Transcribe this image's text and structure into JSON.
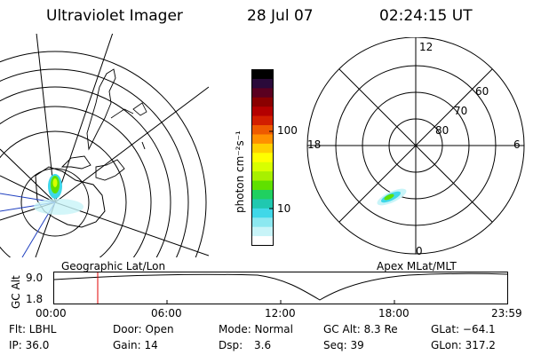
{
  "header": {
    "title": "Ultraviolet Imager",
    "date": "28 Jul 07",
    "time": "02:24:15 UT"
  },
  "colorbar": {
    "unit_label": "photon cm⁻²s⁻¹",
    "ticks": [
      "100",
      "10"
    ],
    "colors": [
      "#000000",
      "#2a0a3a",
      "#5a0020",
      "#8a0000",
      "#b40000",
      "#d21e00",
      "#ee5a00",
      "#ff9000",
      "#ffd000",
      "#ffff00",
      "#d8ff00",
      "#a8f000",
      "#60e000",
      "#20d060",
      "#20c8b0",
      "#40d8e8",
      "#8ce8f0",
      "#c8f4f8",
      "#ffffff"
    ]
  },
  "left_map": {
    "caption": "Geographic Lat/Lon"
  },
  "right_map": {
    "caption": "Apex  MLat/MLT",
    "mlt_labels": {
      "top": "12",
      "bottom": "0",
      "left": "18",
      "right": "6"
    },
    "lat_labels": [
      "60",
      "70",
      "80"
    ]
  },
  "altitude_plot": {
    "ylabel": "GC Alt",
    "yticks": [
      "9.0",
      "1.8"
    ],
    "xticks": [
      "00:00",
      "06:00",
      "12:00",
      "18:00",
      "23:59"
    ],
    "marker_time": "02:24"
  },
  "info": {
    "filter": "Flt: LBHL",
    "door": "Door: Open",
    "mode": "Mode: Normal",
    "gc_alt": "GC Alt: 8.3 Re",
    "glat": "GLat: −64.1",
    "ip": "IP: 36.0",
    "gain": "Gain: 14",
    "dsp_label": "Dsp:",
    "dsp_value": "3.6",
    "seq": "Seq: 39",
    "glon": "GLon: 317.2"
  }
}
